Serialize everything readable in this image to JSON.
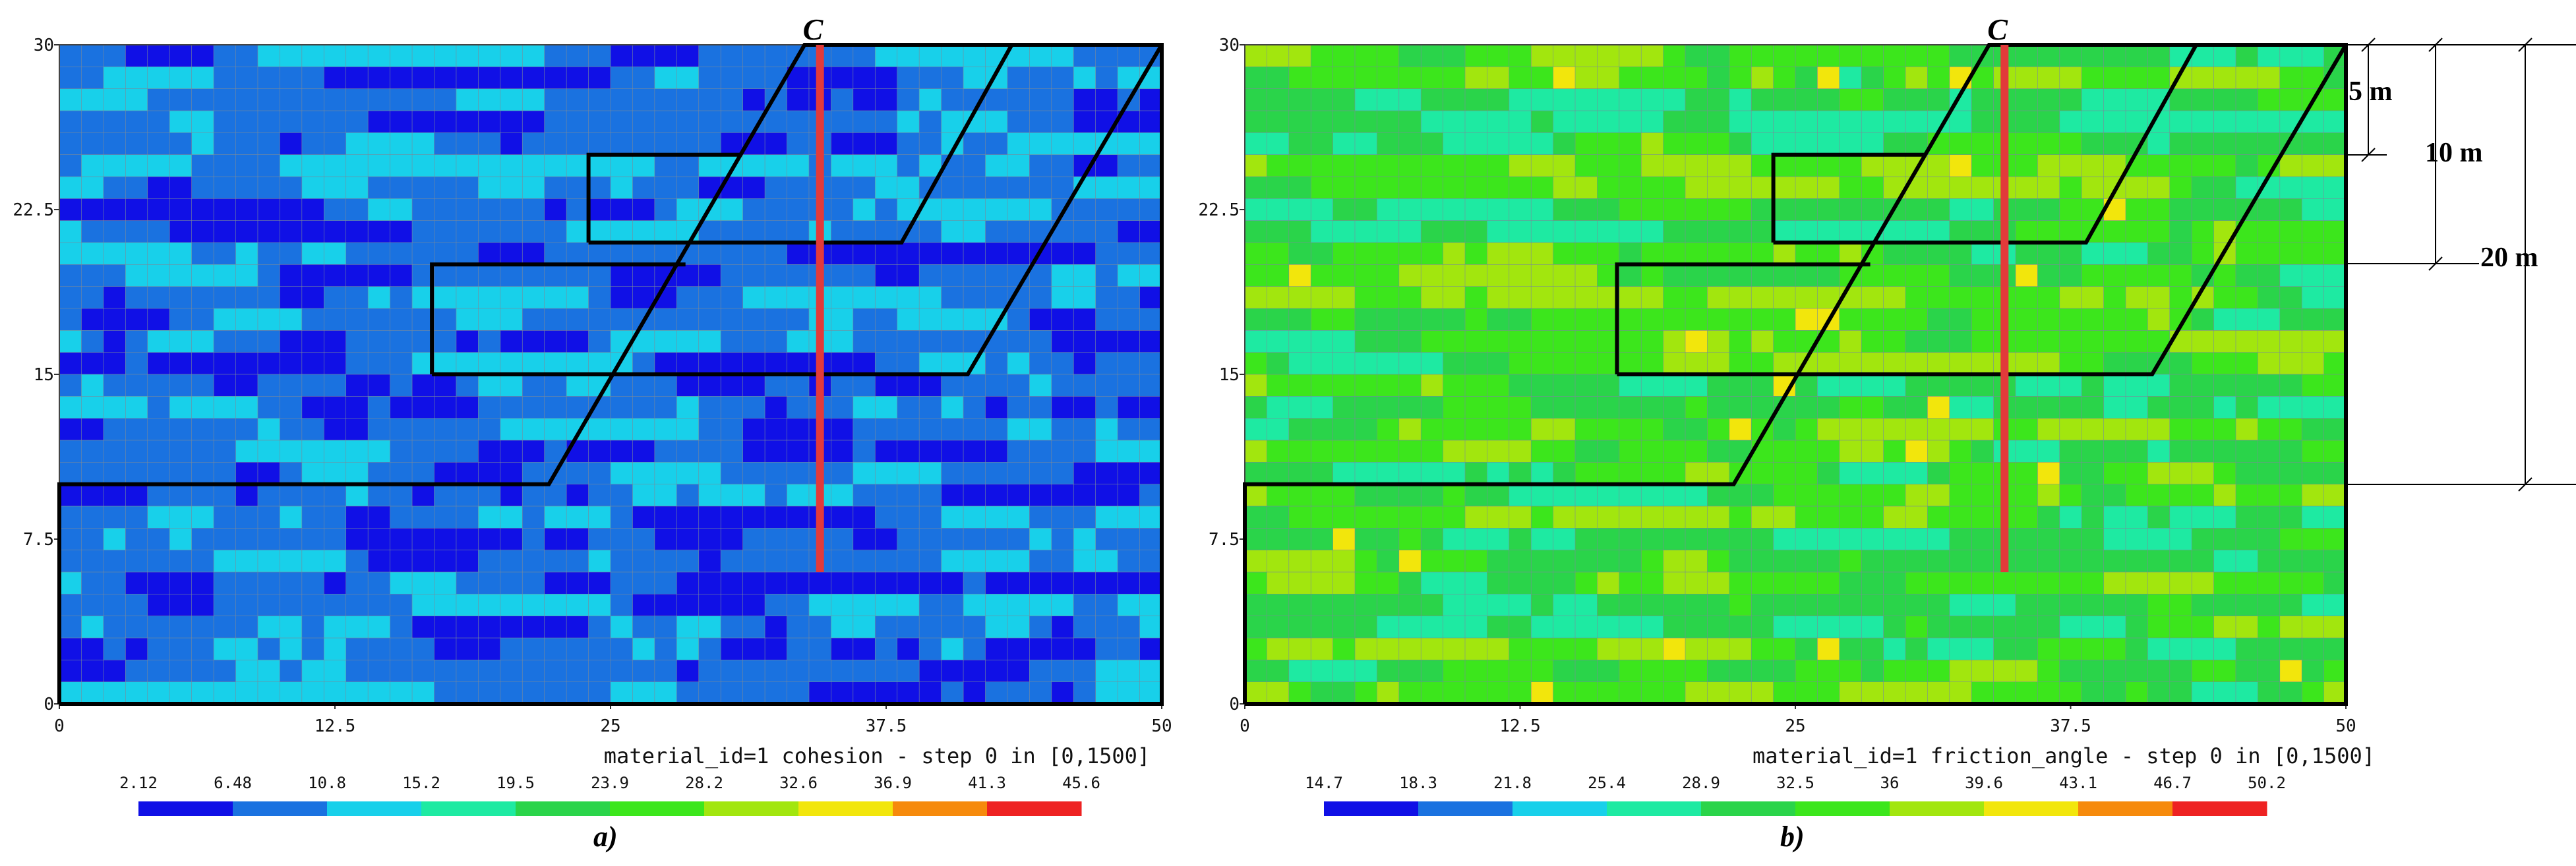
{
  "figure": {
    "annotations": {
      "dim_5": "5 m",
      "dim_10": "10 m",
      "dim_20": "20 m"
    }
  },
  "chart_data": [
    {
      "type": "heatmap",
      "id": "a",
      "panel_label": "a)",
      "title": "material_id=1 cohesion - step 0 in [0,1500]",
      "xlim": [
        0,
        50
      ],
      "ylim": [
        0,
        30
      ],
      "x_ticks": [
        "0",
        "12.5",
        "25",
        "37.5",
        "50"
      ],
      "y_ticks": [
        "0",
        "7.5",
        "15",
        "22.5",
        "30"
      ],
      "grid": {
        "nx": 50,
        "ny": 30
      },
      "colorbar_ticks": [
        "2.12",
        "6.48",
        "10.8",
        "15.2",
        "19.5",
        "23.9",
        "28.2",
        "32.6",
        "36.9",
        "41.3",
        "45.6"
      ],
      "colorbar_colors": [
        "#1010e6",
        "#1a72e0",
        "#18d0ea",
        "#1eeaa2",
        "#2ad44a",
        "#3ce61c",
        "#a2e60e",
        "#f2e60c",
        "#f68a0c",
        "#ee2222"
      ],
      "dominant_bins": [
        0,
        1,
        2
      ],
      "section_label": "C",
      "section_x": 34.5,
      "section_y": [
        6,
        30
      ],
      "polylines": [
        [
          [
            0,
            0
          ],
          [
            0,
            10
          ],
          [
            22.2,
            10
          ],
          [
            33.8,
            30
          ],
          [
            50,
            30
          ],
          [
            50,
            0
          ],
          [
            0,
            0
          ]
        ],
        [
          [
            16.9,
            15
          ],
          [
            16.9,
            20
          ],
          [
            28.4,
            20
          ]
        ],
        [
          [
            16.9,
            15
          ],
          [
            41.2,
            15
          ],
          [
            50,
            30
          ]
        ],
        [
          [
            24,
            21
          ],
          [
            24,
            25
          ],
          [
            30.9,
            25
          ]
        ],
        [
          [
            24,
            21
          ],
          [
            38.2,
            21
          ],
          [
            43.2,
            30
          ]
        ]
      ]
    },
    {
      "type": "heatmap",
      "id": "b",
      "panel_label": "b)",
      "title": "material_id=1 friction_angle - step 0 in [0,1500]",
      "xlim": [
        0,
        50
      ],
      "ylim": [
        0,
        30
      ],
      "x_ticks": [
        "0",
        "12.5",
        "25",
        "37.5",
        "50"
      ],
      "y_ticks": [
        "0",
        "7.5",
        "15",
        "22.5",
        "30"
      ],
      "grid": {
        "nx": 50,
        "ny": 30
      },
      "colorbar_ticks": [
        "14.7",
        "18.3",
        "21.8",
        "25.4",
        "28.9",
        "32.5",
        "36",
        "39.6",
        "43.1",
        "46.7",
        "50.2"
      ],
      "colorbar_colors": [
        "#1010e6",
        "#1a72e0",
        "#18d0ea",
        "#1eeaa2",
        "#2ad44a",
        "#3ce61c",
        "#a2e60e",
        "#f2e60c",
        "#f68a0c",
        "#ee2222"
      ],
      "dominant_bins": [
        3,
        4,
        5,
        6
      ],
      "section_label": "C",
      "section_x": 34.5,
      "section_y": [
        6,
        30
      ],
      "polylines": [
        [
          [
            0,
            0
          ],
          [
            0,
            10
          ],
          [
            22.2,
            10
          ],
          [
            33.8,
            30
          ],
          [
            50,
            30
          ],
          [
            50,
            0
          ],
          [
            0,
            0
          ]
        ],
        [
          [
            16.9,
            15
          ],
          [
            16.9,
            20
          ],
          [
            28.4,
            20
          ]
        ],
        [
          [
            16.9,
            15
          ],
          [
            41.2,
            15
          ],
          [
            50,
            30
          ]
        ],
        [
          [
            24,
            21
          ],
          [
            24,
            25
          ],
          [
            30.9,
            25
          ]
        ],
        [
          [
            24,
            21
          ],
          [
            38.2,
            21
          ],
          [
            43.2,
            30
          ]
        ]
      ]
    }
  ]
}
